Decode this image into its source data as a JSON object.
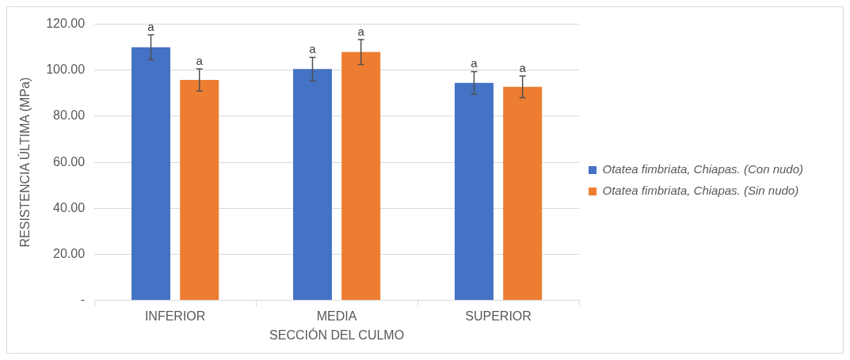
{
  "chart_data": {
    "type": "bar",
    "xlabel": "SECCIÓN DEL CULMO",
    "ylabel": "RESISTENCIA ÚLTIMA (MPa)",
    "categories": [
      "INFERIOR",
      "MEDIA",
      "SUPERIOR"
    ],
    "series": [
      {
        "name": "Otatea fimbriata, Chiapas. (Con nudo)",
        "color": "#4472c4",
        "values": [
          110.0,
          100.5,
          94.5
        ],
        "errors": [
          5.4,
          5.1,
          4.9
        ]
      },
      {
        "name": "Otatea fimbriata, Chiapas. (Sin nudo)",
        "color": "#ed7d31",
        "values": [
          95.8,
          107.9,
          92.8
        ],
        "errors": [
          4.8,
          5.4,
          4.7
        ]
      }
    ],
    "ylim": [
      0,
      120
    ],
    "yticks": [
      {
        "value": 0,
        "label": "-"
      },
      {
        "value": 20,
        "label": "20.00"
      },
      {
        "value": 40,
        "label": "40.00"
      },
      {
        "value": 60,
        "label": "60.00"
      },
      {
        "value": 80,
        "label": "80.00"
      },
      {
        "value": 100,
        "label": "100.00"
      },
      {
        "value": 120,
        "label": "120.00"
      }
    ],
    "annotations": [
      "a",
      "a",
      "a",
      "a",
      "a",
      "a"
    ],
    "grid": "y",
    "legend": "right"
  }
}
